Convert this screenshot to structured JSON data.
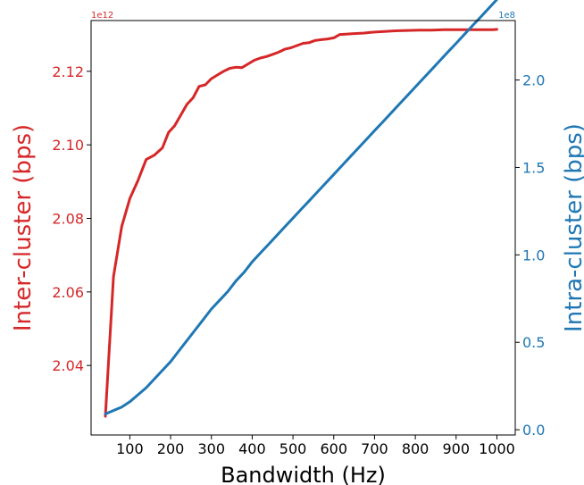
{
  "chart_data": {
    "type": "line",
    "title": "",
    "xlabel": "Bandwidth (Hz)",
    "xlim": [
      5,
      1045
    ],
    "x_ticks": [
      100,
      200,
      300,
      400,
      500,
      600,
      700,
      800,
      900,
      1000
    ],
    "grid": false,
    "legend": "none",
    "left_axis": {
      "label": "Inter-cluster (bps)",
      "offset_text": "1e12",
      "color": "#d62728",
      "ylim": [
        2.0211,
        2.1338
      ],
      "ticks": [
        2.04,
        2.06,
        2.08,
        2.1,
        2.12
      ],
      "tick_labels": [
        "2.04",
        "2.06",
        "2.08",
        "2.10",
        "2.12"
      ]
    },
    "right_axis": {
      "label": "Intra-cluster (bps)",
      "offset_text": "1e8",
      "color": "#1f77b4",
      "ylim": [
        -0.03,
        2.34
      ],
      "ticks": [
        0.0,
        0.5,
        1.0,
        1.5,
        2.0
      ],
      "tick_labels": [
        "0.0",
        "0.5",
        "1.0",
        "1.5",
        "2.0"
      ]
    },
    "series": [
      {
        "axis": "left",
        "color": "#d62728",
        "x": [
          40,
          60,
          80,
          100,
          120,
          140,
          160,
          180,
          195,
          210,
          225,
          240,
          255,
          270,
          285,
          300,
          315,
          330,
          345,
          360,
          375,
          390,
          405,
          420,
          435,
          450,
          465,
          480,
          495,
          510,
          525,
          540,
          555,
          570,
          585,
          600,
          615,
          630,
          645,
          660,
          675,
          690,
          705,
          720,
          750,
          780,
          810,
          840,
          870,
          900,
          930,
          960,
          990,
          1000
        ],
        "values": [
          2.0262,
          2.0642,
          2.0778,
          2.0854,
          2.0903,
          2.096,
          2.0972,
          2.0992,
          2.1034,
          2.1052,
          2.1081,
          2.111,
          2.1128,
          2.1159,
          2.1163,
          2.118,
          2.119,
          2.12,
          2.1208,
          2.1211,
          2.121,
          2.122,
          2.123,
          2.1236,
          2.124,
          2.1246,
          2.1252,
          2.126,
          2.1264,
          2.127,
          2.1276,
          2.1278,
          2.1284,
          2.1286,
          2.1288,
          2.1291,
          2.13,
          2.1301,
          2.1302,
          2.1303,
          2.1304,
          2.1306,
          2.1307,
          2.1308,
          2.131,
          2.1311,
          2.1312,
          2.1312,
          2.1313,
          2.1313,
          2.1313,
          2.1313,
          2.1313,
          2.1314
        ]
      },
      {
        "axis": "right",
        "color": "#1f77b4",
        "x": [
          40,
          60,
          80,
          100,
          120,
          140,
          160,
          180,
          200,
          220,
          240,
          260,
          280,
          300,
          320,
          340,
          360,
          380,
          400,
          420,
          440,
          460,
          480,
          500,
          520,
          540,
          560,
          580,
          600,
          620,
          640,
          660,
          680,
          700,
          720,
          740,
          760,
          780,
          800,
          820,
          840,
          860,
          880,
          900,
          920,
          940,
          960,
          980,
          1000
        ],
        "values": [
          0.09,
          0.11,
          0.13,
          0.16,
          0.2,
          0.24,
          0.29,
          0.34,
          0.39,
          0.45,
          0.51,
          0.57,
          0.63,
          0.69,
          0.74,
          0.79,
          0.85,
          0.9,
          0.96,
          1.01,
          1.06,
          1.11,
          1.16,
          1.21,
          1.26,
          1.31,
          1.36,
          1.41,
          1.46,
          1.51,
          1.56,
          1.61,
          1.66,
          1.71,
          1.76,
          1.81,
          1.86,
          1.91,
          1.96,
          2.01,
          2.06,
          2.11,
          2.16,
          2.21,
          2.26,
          2.31,
          2.36,
          2.41,
          2.46
        ]
      }
    ]
  }
}
